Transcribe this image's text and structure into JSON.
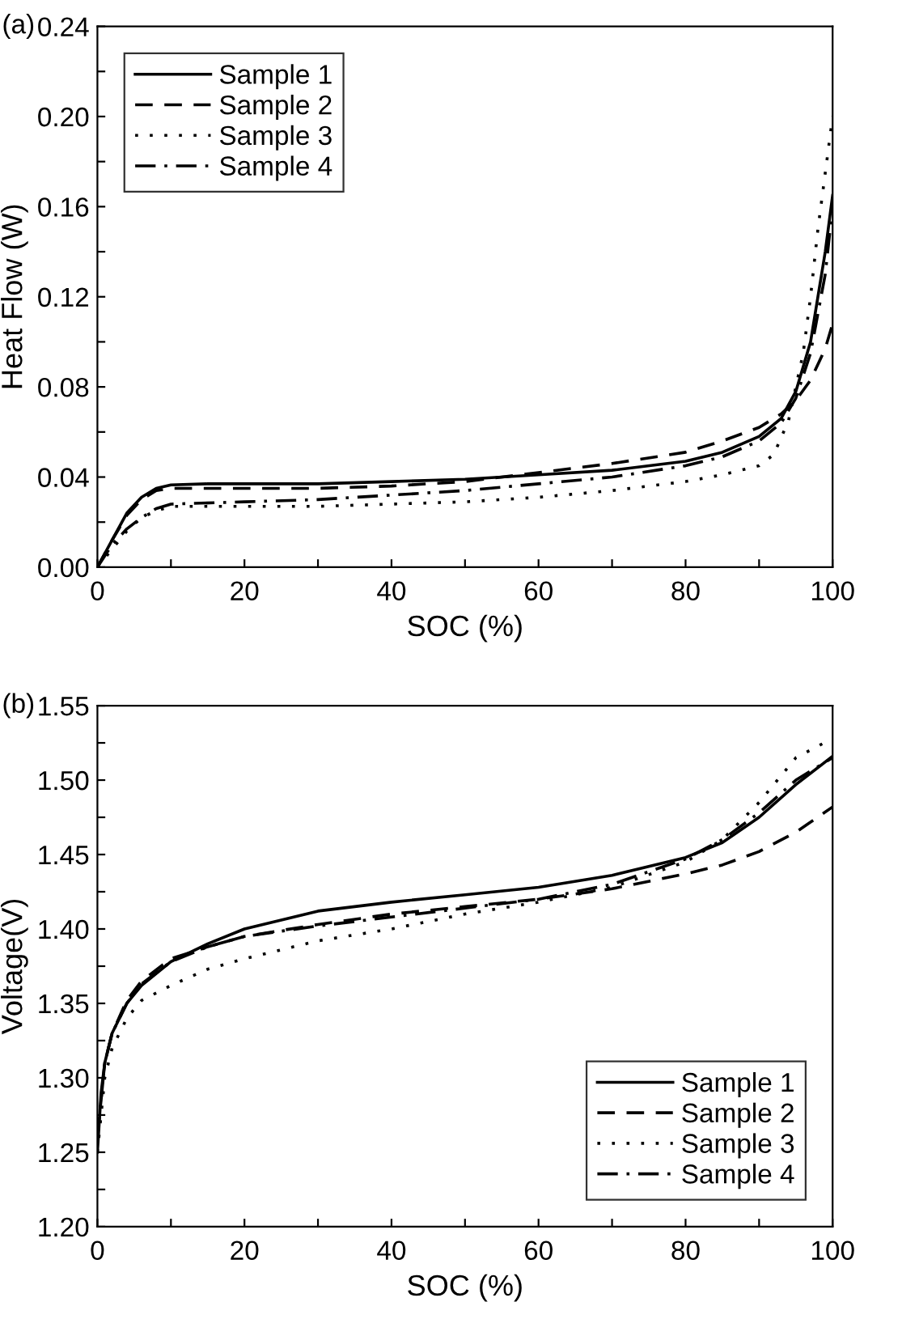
{
  "chart_data": [
    {
      "type": "line",
      "title": "(a)",
      "xlabel": "SOC (%)",
      "ylabel": "Heat Flow (W)",
      "xlim": [
        0,
        100
      ],
      "ylim": [
        0,
        0.24
      ],
      "xticks": [
        0,
        {
          "value": 10,
          "label": null
        },
        20,
        {
          "value": 30,
          "label": null
        },
        40,
        {
          "value": 50,
          "label": null
        },
        60,
        {
          "value": 70,
          "label": null
        },
        80,
        {
          "value": 90,
          "label": null
        },
        100
      ],
      "yticks": [
        {
          "value": 0,
          "label": "0.00"
        },
        {
          "value": 0.02,
          "label": null
        },
        {
          "value": 0.04,
          "label": "0.04"
        },
        {
          "value": 0.06,
          "label": null
        },
        {
          "value": 0.08,
          "label": "0.08"
        },
        {
          "value": 0.1,
          "label": null
        },
        {
          "value": 0.12,
          "label": "0.12"
        },
        {
          "value": 0.14,
          "label": null
        },
        {
          "value": 0.16,
          "label": "0.16"
        },
        {
          "value": 0.18,
          "label": null
        },
        {
          "value": 0.2,
          "label": "0.20"
        },
        {
          "value": 0.22,
          "label": null
        },
        {
          "value": 0.24,
          "label": "0.24"
        }
      ],
      "legend": "top left",
      "grid": false,
      "series": [
        {
          "name": "Sample 1",
          "color": "#000000",
          "line_style": "solid",
          "x": [
            0,
            2,
            4,
            6,
            8,
            10,
            15,
            20,
            30,
            40,
            50,
            60,
            70,
            80,
            85,
            90,
            93,
            95,
            97,
            98,
            99,
            100
          ],
          "values": [
            0,
            0.012,
            0.024,
            0.031,
            0.035,
            0.0365,
            0.037,
            0.037,
            0.037,
            0.038,
            0.039,
            0.041,
            0.043,
            0.047,
            0.051,
            0.058,
            0.066,
            0.078,
            0.1,
            0.12,
            0.14,
            0.165
          ]
        },
        {
          "name": "Sample 2",
          "color": "#000000",
          "line_style": "dashed",
          "x": [
            0,
            2,
            4,
            6,
            8,
            10,
            20,
            30,
            40,
            50,
            60,
            70,
            80,
            85,
            90,
            93,
            95,
            97,
            99,
            100
          ],
          "values": [
            0,
            0.012,
            0.023,
            0.03,
            0.034,
            0.035,
            0.035,
            0.035,
            0.036,
            0.038,
            0.042,
            0.046,
            0.051,
            0.056,
            0.062,
            0.068,
            0.074,
            0.083,
            0.097,
            0.108
          ]
        },
        {
          "name": "Sample 3",
          "color": "#000000",
          "line_style": "dotted",
          "x": [
            0,
            2,
            4,
            6,
            8,
            10,
            20,
            30,
            40,
            50,
            60,
            70,
            80,
            85,
            90,
            92,
            94,
            96,
            97,
            98,
            99,
            100
          ],
          "values": [
            0,
            0.008,
            0.016,
            0.022,
            0.025,
            0.027,
            0.027,
            0.027,
            0.028,
            0.029,
            0.031,
            0.034,
            0.038,
            0.041,
            0.045,
            0.05,
            0.065,
            0.095,
            0.12,
            0.15,
            0.175,
            0.2
          ]
        },
        {
          "name": "Sample 4",
          "color": "#000000",
          "line_style": "dashdot",
          "x": [
            0,
            2,
            4,
            6,
            8,
            10,
            20,
            30,
            40,
            50,
            60,
            70,
            80,
            85,
            90,
            93,
            95,
            97,
            99,
            100
          ],
          "values": [
            0,
            0.01,
            0.017,
            0.022,
            0.026,
            0.028,
            0.029,
            0.03,
            0.032,
            0.034,
            0.037,
            0.04,
            0.045,
            0.049,
            0.056,
            0.064,
            0.075,
            0.095,
            0.13,
            0.16
          ]
        }
      ]
    },
    {
      "type": "line",
      "title": "(b)",
      "xlabel": "SOC (%)",
      "ylabel": "Voltage(V)",
      "xlim": [
        0,
        100
      ],
      "ylim": [
        1.2,
        1.55
      ],
      "xticks": [
        0,
        {
          "value": 10,
          "label": null
        },
        20,
        {
          "value": 30,
          "label": null
        },
        40,
        {
          "value": 50,
          "label": null
        },
        60,
        {
          "value": 70,
          "label": null
        },
        80,
        {
          "value": 90,
          "label": null
        },
        100
      ],
      "yticks": [
        {
          "value": 1.2,
          "label": "1.20"
        },
        {
          "value": 1.225,
          "label": null
        },
        {
          "value": 1.25,
          "label": "1.25"
        },
        {
          "value": 1.275,
          "label": null
        },
        {
          "value": 1.3,
          "label": "1.30"
        },
        {
          "value": 1.325,
          "label": null
        },
        {
          "value": 1.35,
          "label": "1.35"
        },
        {
          "value": 1.375,
          "label": null
        },
        {
          "value": 1.4,
          "label": "1.40"
        },
        {
          "value": 1.425,
          "label": null
        },
        {
          "value": 1.45,
          "label": "1.45"
        },
        {
          "value": 1.475,
          "label": null
        },
        {
          "value": 1.5,
          "label": "1.50"
        },
        {
          "value": 1.525,
          "label": null
        },
        {
          "value": 1.55,
          "label": "1.55"
        }
      ],
      "legend": "bottom right",
      "grid": false,
      "series": [
        {
          "name": "Sample 1",
          "color": "#000000",
          "line_style": "solid",
          "x": [
            0,
            0.5,
            1,
            2,
            4,
            6,
            10,
            15,
            20,
            30,
            40,
            50,
            60,
            70,
            80,
            85,
            90,
            95,
            100
          ],
          "values": [
            1.25,
            1.29,
            1.31,
            1.33,
            1.35,
            1.362,
            1.378,
            1.39,
            1.4,
            1.412,
            1.418,
            1.423,
            1.428,
            1.436,
            1.448,
            1.458,
            1.475,
            1.497,
            1.516
          ]
        },
        {
          "name": "Sample 2",
          "color": "#000000",
          "line_style": "dashed",
          "x": [
            0,
            1,
            2,
            4,
            6,
            10,
            15,
            20,
            30,
            40,
            50,
            60,
            70,
            80,
            85,
            90,
            95,
            100
          ],
          "values": [
            1.26,
            1.31,
            1.33,
            1.352,
            1.365,
            1.38,
            1.388,
            1.395,
            1.403,
            1.41,
            1.415,
            1.42,
            1.427,
            1.437,
            1.443,
            1.452,
            1.465,
            1.482
          ]
        },
        {
          "name": "Sample 3",
          "color": "#000000",
          "line_style": "dotted",
          "x": [
            0,
            1,
            2,
            4,
            6,
            10,
            15,
            20,
            30,
            40,
            50,
            60,
            70,
            80,
            85,
            90,
            95,
            100
          ],
          "values": [
            1.25,
            1.3,
            1.32,
            1.34,
            1.352,
            1.362,
            1.373,
            1.38,
            1.392,
            1.4,
            1.41,
            1.418,
            1.428,
            1.445,
            1.46,
            1.485,
            1.515,
            1.528
          ]
        },
        {
          "name": "Sample 4",
          "color": "#000000",
          "line_style": "dashdot",
          "x": [
            0,
            1,
            2,
            4,
            6,
            10,
            15,
            20,
            30,
            40,
            50,
            60,
            70,
            80,
            85,
            90,
            95,
            100
          ],
          "values": [
            1.26,
            1.31,
            1.33,
            1.35,
            1.363,
            1.378,
            1.388,
            1.395,
            1.402,
            1.408,
            1.414,
            1.42,
            1.43,
            1.447,
            1.46,
            1.478,
            1.5,
            1.515
          ]
        }
      ]
    }
  ]
}
